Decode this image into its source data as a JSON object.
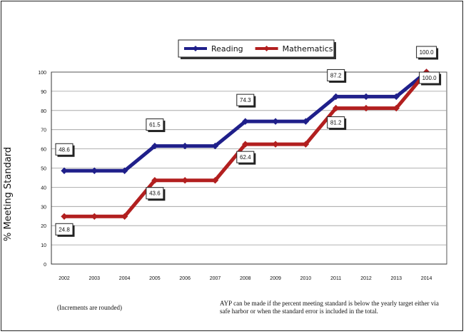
{
  "chart_data": {
    "type": "line",
    "ylabel": "% Meeting Standard",
    "xlabel": "",
    "x": [
      "2002",
      "2003",
      "2004",
      "2005",
      "2006",
      "2007",
      "2008",
      "2009",
      "2010",
      "2011",
      "2012",
      "2013",
      "2014"
    ],
    "ylim": [
      0,
      100
    ],
    "yticks": [
      "0",
      "10",
      "20",
      "30",
      "40",
      "50",
      "60",
      "70",
      "80",
      "90",
      "100"
    ],
    "grid": true,
    "legend_position": "top-center",
    "series": [
      {
        "name": "Reading",
        "color": "#1f1f8a",
        "values": [
          48.6,
          48.6,
          48.6,
          61.5,
          61.5,
          61.5,
          74.3,
          74.3,
          74.3,
          87.2,
          87.2,
          87.2,
          100.0
        ],
        "labels": [
          {
            "x": "2002",
            "text": "48.6"
          },
          {
            "x": "2005",
            "text": "61.5"
          },
          {
            "x": "2008",
            "text": "74.3"
          },
          {
            "x": "2011",
            "text": "87.2"
          },
          {
            "x": "2014",
            "text": "100.0"
          }
        ]
      },
      {
        "name": "Mathematics",
        "color": "#b21f1f",
        "values": [
          24.8,
          24.8,
          24.8,
          43.6,
          43.6,
          43.6,
          62.4,
          62.4,
          62.4,
          81.2,
          81.2,
          81.2,
          100.0
        ],
        "labels": [
          {
            "x": "2002",
            "text": "24.8"
          },
          {
            "x": "2005",
            "text": "43.6"
          },
          {
            "x": "2008",
            "text": "62.4"
          },
          {
            "x": "2011",
            "text": "81.2"
          },
          {
            "x": "2014",
            "text": "100.0"
          }
        ]
      }
    ]
  },
  "notes": {
    "left": "(Increments are rounded)",
    "right": "AYP can be made if the percent meeting standard is below the yearly target either via safe harbor or when the standard error is included in the total."
  }
}
